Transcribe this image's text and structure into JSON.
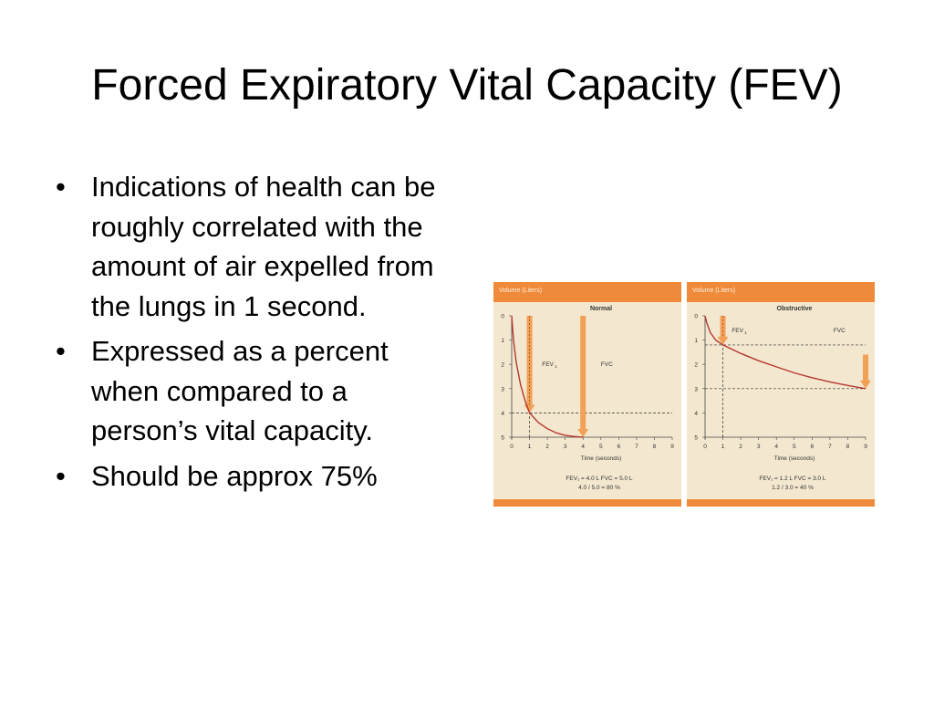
{
  "slide": {
    "title": "Forced Expiratory Vital Capacity (FEV)",
    "bullet_char": "•",
    "bullets": [
      "Indications of health can be roughly correlated with the amount of air expelled from the lungs in 1 second.",
      "Expressed as a percent when compared to a person’s vital capacity.",
      "Should be approx 75%"
    ]
  },
  "colors": {
    "panel_bg": "#f3e7cf",
    "header": "#ee8a39",
    "curve": "#b5372f",
    "arrow": "#f2a055"
  },
  "chart_data": [
    {
      "type": "line",
      "title": "Normal",
      "ylabel": "Volume (Liters)",
      "xlabel": "Time (seconds)",
      "xlim": [
        0,
        9
      ],
      "ylim": [
        0,
        5
      ],
      "y_inverted": true,
      "x_ticks": [
        "0",
        "1",
        "2",
        "3",
        "4",
        "5",
        "6",
        "7",
        "8",
        "9"
      ],
      "y_ticks": [
        "0",
        "1",
        "2",
        "3",
        "4",
        "5"
      ],
      "grid": false,
      "annotations": {
        "fev1": "FEV",
        "fev1_sub": "1",
        "fvc": "FVC"
      },
      "fev1_point": [
        1,
        4.0
      ],
      "fvc_point": [
        4,
        5.0
      ],
      "fev1_value": 4.0,
      "fvc_value": 5.0,
      "series": [
        {
          "x": [
            0,
            0.1,
            0.25,
            0.5,
            0.75,
            1,
            1.5,
            2,
            2.5,
            3,
            3.5,
            4
          ],
          "y": [
            0,
            1.0,
            1.9,
            2.85,
            3.5,
            4.0,
            4.4,
            4.65,
            4.82,
            4.92,
            4.97,
            5.0
          ]
        }
      ],
      "caption_1": "FEV₁ = 4.0 L        FVC = 5.0 L",
      "caption_2": "4.0 / 5.0 = 80 %"
    },
    {
      "type": "line",
      "title": "Obstructive",
      "ylabel": "Volume (Liters)",
      "xlabel": "Time (seconds)",
      "xlim": [
        0,
        9
      ],
      "ylim": [
        0,
        5
      ],
      "y_inverted": true,
      "x_ticks": [
        "0",
        "1",
        "2",
        "3",
        "4",
        "5",
        "6",
        "7",
        "8",
        "9"
      ],
      "y_ticks": [
        "0",
        "1",
        "2",
        "3",
        "4",
        "5"
      ],
      "grid": false,
      "annotations": {
        "fev1": "FEV",
        "fev1_sub": "1",
        "fvc": "FVC"
      },
      "fev1_point": [
        1,
        1.2
      ],
      "fvc_point": [
        9,
        3.0
      ],
      "fev1_value": 1.2,
      "fvc_value": 3.0,
      "series": [
        {
          "x": [
            0,
            0.1,
            0.3,
            0.6,
            1,
            2,
            3,
            4,
            5,
            6,
            7,
            8,
            9
          ],
          "y": [
            0,
            0.3,
            0.7,
            1.0,
            1.2,
            1.55,
            1.85,
            2.1,
            2.35,
            2.55,
            2.72,
            2.87,
            3.0
          ]
        }
      ],
      "caption_1": "FEV₁ = 1.2 L        FVC = 3.0 L",
      "caption_2": "1.2 / 3.0 = 40 %"
    }
  ]
}
